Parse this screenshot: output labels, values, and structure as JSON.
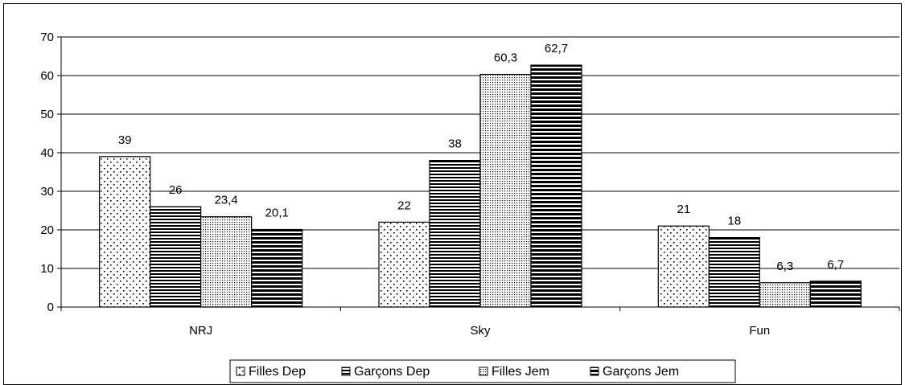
{
  "chart_data": {
    "type": "bar",
    "categories": [
      "NRJ",
      "Sky",
      "Fun"
    ],
    "series": [
      {
        "name": "Filles Dep",
        "values": [
          39,
          22,
          21
        ],
        "labels": [
          "39",
          "22",
          "21"
        ],
        "pattern": "dots-sparse"
      },
      {
        "name": "Garçons Dep",
        "values": [
          26,
          38,
          18
        ],
        "labels": [
          "26",
          "38",
          "18"
        ],
        "pattern": "hlines-thin"
      },
      {
        "name": "Filles Jem",
        "values": [
          23.4,
          60.3,
          6.3
        ],
        "labels": [
          "23,4",
          "60,3",
          "6,3"
        ],
        "pattern": "dots-dense"
      },
      {
        "name": "Garçons Jem",
        "values": [
          20.1,
          62.7,
          6.7
        ],
        "labels": [
          "20,1",
          "62,7",
          "6,7"
        ],
        "pattern": "hlines-thick"
      }
    ],
    "y_ticks": [
      0,
      10,
      20,
      30,
      40,
      50,
      60,
      70
    ],
    "ylim": [
      0,
      70
    ],
    "grid": true,
    "legend_position": "bottom",
    "title": "",
    "xlabel": "",
    "ylabel": ""
  }
}
